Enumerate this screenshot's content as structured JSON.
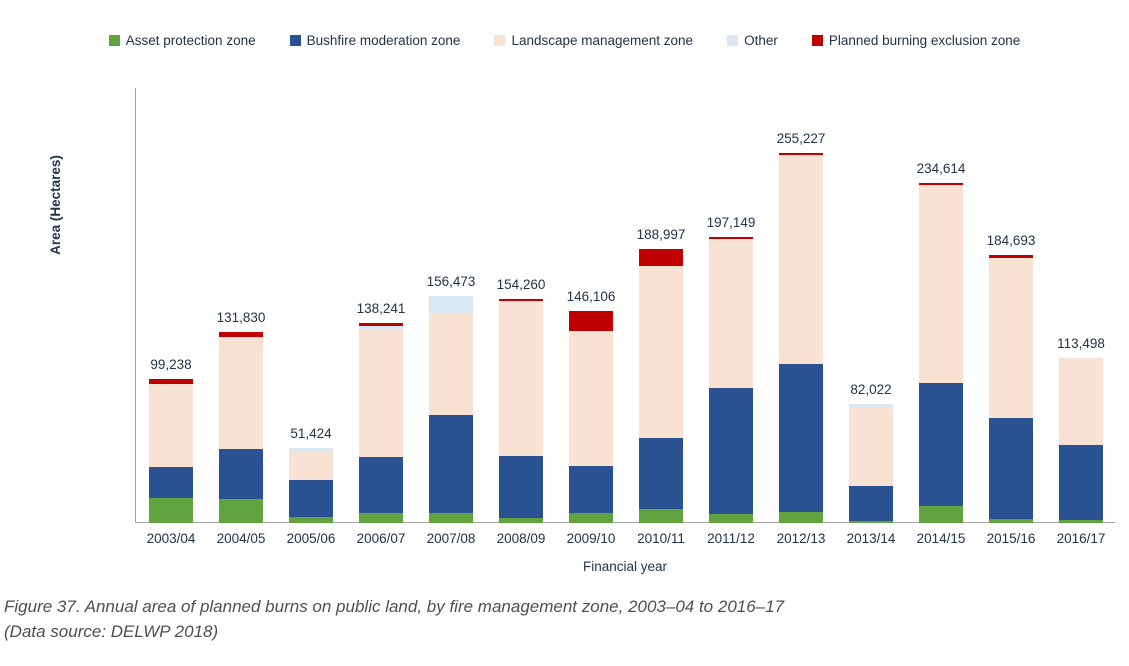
{
  "caption": {
    "line1": "Figure 37. Annual area of planned burns on public land, by fire management zone, 2003–04 to 2016–17",
    "line2": "(Data source: DELWP 2018)"
  },
  "chart_data": {
    "type": "bar",
    "stacked": true,
    "title": "",
    "xlabel": "Financial year",
    "ylabel": "Area (Hectares)",
    "ylim": [
      0,
      300000
    ],
    "yticks": [
      0,
      50000,
      100000,
      150000,
      200000,
      250000,
      300000
    ],
    "grid": false,
    "legend_position": "top",
    "axis_color": "#a3a3a3",
    "label_color": "#22344a",
    "categories": [
      "2003/04",
      "2004/05",
      "2005/06",
      "2006/07",
      "2007/08",
      "2008/09",
      "2009/10",
      "2010/11",
      "2011/12",
      "2012/13",
      "2013/14",
      "2014/15",
      "2015/16",
      "2016/17"
    ],
    "series": [
      {
        "name": "Asset protection zone",
        "color": "#61a33e",
        "values": [
          17000,
          16600,
          4100,
          7100,
          6900,
          3400,
          6900,
          10000,
          6000,
          7600,
          1100,
          11400,
          3000,
          1800
        ]
      },
      {
        "name": "Bushfire moderation zone",
        "color": "#2a5191",
        "values": [
          21600,
          34200,
          25500,
          38700,
          67900,
          42500,
          32700,
          48400,
          87000,
          102000,
          24600,
          85100,
          69700,
          52000
        ]
      },
      {
        "name": "Landscape management zone",
        "color": "#f9e1d3",
        "values": [
          57400,
          77600,
          20000,
          87200,
          70200,
          106960,
          92706,
          118597,
          102749,
          144127,
          53822,
          136314,
          110193,
          59698
        ]
      },
      {
        "name": "Other",
        "color": "#dbe7f3",
        "values": [
          0,
          0,
          1824,
          2541,
          11473,
          0,
          0,
          0,
          0,
          0,
          2500,
          0,
          0,
          0
        ]
      },
      {
        "name": "Planned burning exclusion zone",
        "color": "#c00000",
        "values": [
          3238,
          3430,
          0,
          2700,
          0,
          1400,
          13800,
          12000,
          1400,
          1500,
          0,
          1800,
          1800,
          0
        ]
      }
    ],
    "totals": [
      99238,
      131830,
      51424,
      138241,
      156473,
      154260,
      146106,
      188997,
      197149,
      255227,
      82022,
      234614,
      184693,
      113498
    ],
    "total_labels": [
      "99,238",
      "131,830",
      "51,424",
      "138,241",
      "156,473",
      "154,260",
      "146,106",
      "188,997",
      "197,149",
      "255,227",
      "82,022",
      "234,614",
      "184,693",
      "113,498"
    ]
  }
}
